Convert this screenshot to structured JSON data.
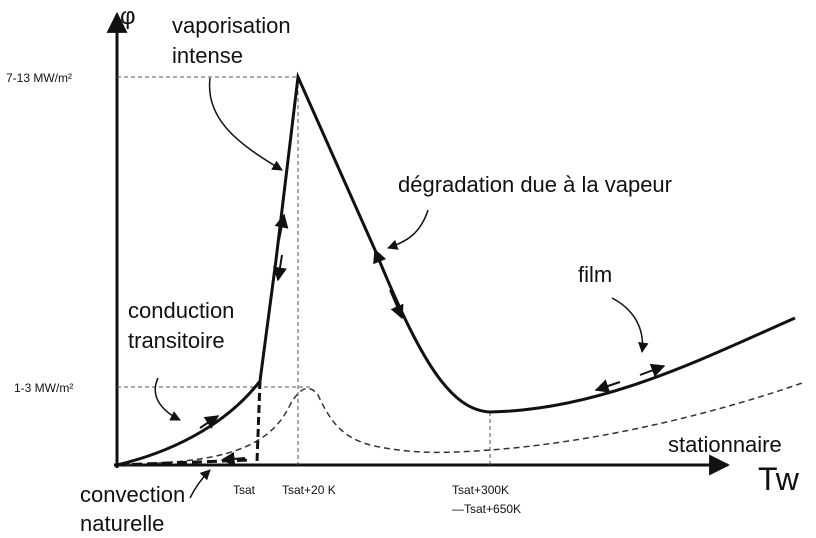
{
  "axes": {
    "y_label": "φ",
    "x_label": "Tw"
  },
  "y_levels": [
    "7-13 MW/m²",
    "1-3 MW/m²"
  ],
  "x_levels": [
    "Tsat",
    "Tsat+20 K",
    "Tsat+300K",
    "—Tsat+650K"
  ],
  "annotations": {
    "vaporisation": [
      "vaporisation",
      "intense"
    ],
    "degradation": "dégradation due à la vapeur",
    "film": "film",
    "conduction": [
      "conduction",
      "transitoire"
    ],
    "stationnaire": "stationnaire",
    "convection": [
      "convection",
      "naturelle"
    ]
  }
}
